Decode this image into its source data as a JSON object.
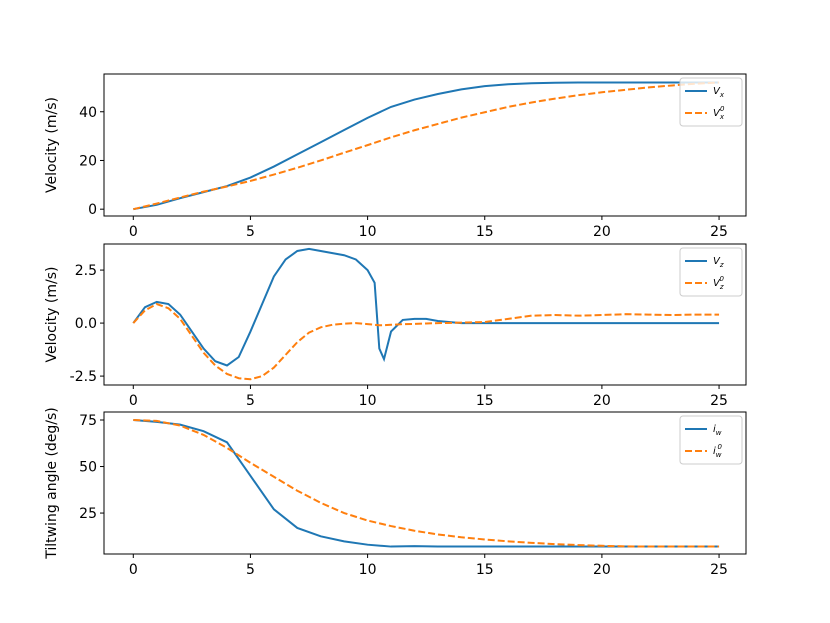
{
  "chart_data": [
    {
      "type": "line",
      "ylabel": "Velocity (m/s)",
      "legend": "upper right",
      "grid": false,
      "x": [
        0,
        1,
        2,
        3,
        4,
        5,
        6,
        7,
        8,
        9,
        10,
        11,
        12,
        13,
        14,
        15,
        16,
        17,
        18,
        19,
        20,
        21,
        22,
        23,
        24,
        25
      ],
      "xlim": [
        -1.25,
        26.15
      ],
      "xticks": [
        0,
        5,
        10,
        15,
        20,
        25
      ],
      "ylim": [
        -2.8,
        55.5
      ],
      "yticks": [
        0,
        20,
        40
      ],
      "series": [
        {
          "name": "V_x",
          "color": "#1f77b4",
          "linestyle": "solid",
          "values": [
            0,
            1.8,
            4.5,
            7,
            9.5,
            13,
            17.5,
            22.5,
            27.5,
            32.5,
            37.5,
            42,
            45,
            47.3,
            49.2,
            50.5,
            51.3,
            51.7,
            51.9,
            52,
            52,
            52,
            52,
            52,
            52,
            52
          ]
        },
        {
          "name": "V_x^0",
          "color": "#ff7f0e",
          "linestyle": "dashed",
          "values": [
            0,
            2.3,
            4.8,
            7.2,
            9.3,
            11.6,
            14.2,
            17,
            20,
            23.2,
            26.3,
            29.5,
            32.4,
            35,
            37.6,
            39.8,
            42,
            43.8,
            45.4,
            46.8,
            48,
            49,
            50,
            50.8,
            51.5,
            52
          ]
        }
      ]
    },
    {
      "type": "line",
      "ylabel": "Velocity (m/s)",
      "legend": "upper right",
      "grid": false,
      "x": [
        0,
        0.5,
        1,
        1.5,
        2,
        2.5,
        3,
        3.5,
        4,
        4.5,
        5,
        5.5,
        6,
        6.5,
        7,
        7.5,
        8,
        8.5,
        9,
        9.5,
        10,
        10.3,
        10.5,
        10.7,
        11,
        11.5,
        12,
        12.5,
        13,
        14,
        15,
        16,
        17,
        18,
        19,
        20,
        21,
        22,
        23,
        24,
        25
      ],
      "xlim": [
        -1.25,
        26.15
      ],
      "xticks": [
        0,
        5,
        10,
        15,
        20,
        25
      ],
      "ylim": [
        -2.92,
        3.73
      ],
      "yticks": [
        {
          "value": -2.5,
          "label": "-2.5"
        },
        {
          "value": 0,
          "label": "0.0"
        },
        {
          "value": 2.5,
          "label": "2.5"
        }
      ],
      "series": [
        {
          "name": "V_z",
          "color": "#1f77b4",
          "linestyle": "solid",
          "values": [
            0,
            0.75,
            1.0,
            0.9,
            0.4,
            -0.4,
            -1.2,
            -1.8,
            -2.0,
            -1.6,
            -0.4,
            0.9,
            2.2,
            3.0,
            3.4,
            3.5,
            3.4,
            3.3,
            3.2,
            3.0,
            2.5,
            1.9,
            -1.2,
            -1.7,
            -0.4,
            0.15,
            0.2,
            0.2,
            0.1,
            0,
            0,
            0,
            0,
            0,
            0,
            0,
            0,
            0,
            0,
            0,
            0
          ]
        },
        {
          "name": "V_z^0",
          "color": "#ff7f0e",
          "linestyle": "dashed",
          "values": [
            0,
            0.6,
            0.9,
            0.7,
            0.2,
            -0.6,
            -1.4,
            -2.0,
            -2.4,
            -2.6,
            -2.65,
            -2.5,
            -2.1,
            -1.5,
            -0.9,
            -0.45,
            -0.2,
            -0.08,
            -0.03,
            0,
            -0.05,
            -0.08,
            -0.1,
            -0.1,
            -0.08,
            -0.05,
            -0.04,
            -0.02,
            0,
            0.02,
            0.05,
            0.2,
            0.35,
            0.38,
            0.35,
            0.38,
            0.42,
            0.4,
            0.38,
            0.4,
            0.4
          ]
        }
      ]
    },
    {
      "type": "line",
      "ylabel": "Tiltwing angle (deg/s)",
      "legend": "upper right",
      "grid": false,
      "x": [
        0,
        1,
        2,
        3,
        4,
        5,
        6,
        7,
        8,
        9,
        10,
        11,
        12,
        13,
        14,
        15,
        16,
        17,
        18,
        19,
        20,
        21,
        22,
        23,
        24,
        25
      ],
      "xlim": [
        -1.25,
        26.15
      ],
      "xticks": [
        0,
        5,
        10,
        15,
        20,
        25
      ],
      "ylim": [
        3,
        79.3
      ],
      "yticks": [
        25,
        50,
        75
      ],
      "series": [
        {
          "name": "i_w",
          "color": "#1f77b4",
          "linestyle": "solid",
          "values": [
            75,
            74,
            72.5,
            69,
            63,
            45,
            27,
            17,
            12.5,
            9.8,
            8,
            7,
            7.2,
            7,
            7,
            7,
            7,
            7,
            7,
            7,
            7,
            7,
            7,
            7,
            7,
            7
          ]
        },
        {
          "name": "i_w^0",
          "color": "#ff7f0e",
          "linestyle": "dashed",
          "values": [
            75,
            74.5,
            72,
            67,
            60,
            52,
            44.5,
            37,
            30.5,
            25,
            21,
            18,
            15.5,
            13.5,
            12,
            10.8,
            9.8,
            9,
            8.3,
            7.8,
            7.4,
            7.1,
            7,
            7,
            7,
            7
          ]
        }
      ]
    }
  ]
}
